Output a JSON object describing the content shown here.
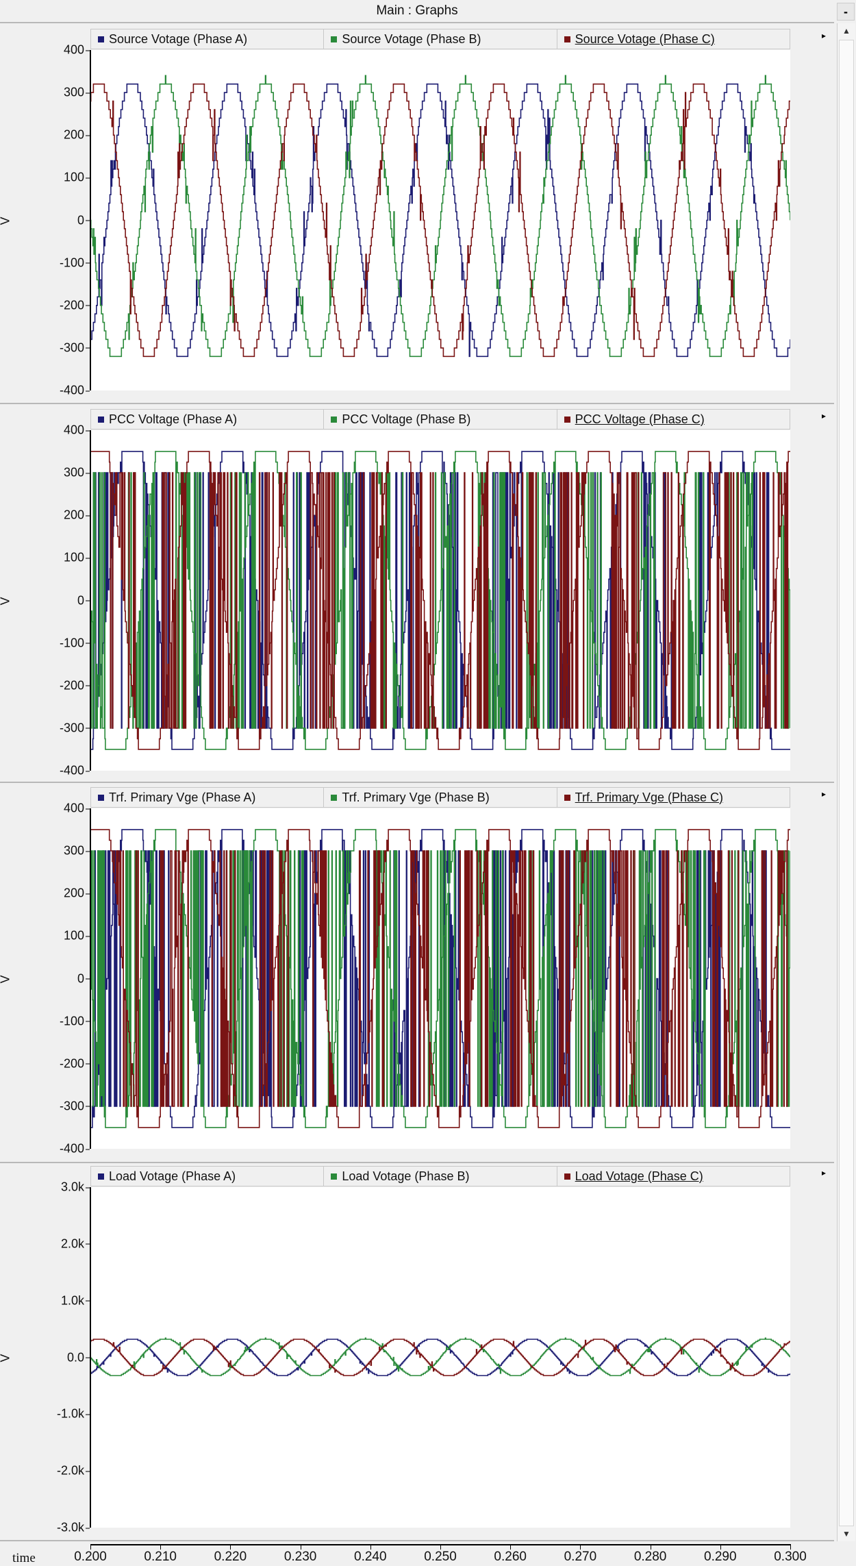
{
  "window": {
    "title": "Main : Graphs",
    "minimize_label": "-"
  },
  "colors": {
    "phase_a": "#1c1c72",
    "phase_b": "#2a8a3a",
    "phase_c": "#7a1414"
  },
  "chart_data": [
    {
      "type": "line",
      "legend": [
        "Source Voltage (Phase A)",
        "Source Voltage (Phase B)",
        "Source Voltage (Phase C)"
      ],
      "ylabel": "V",
      "xlabel": "time",
      "ylim": [
        -400,
        400
      ],
      "yticks": [
        "400",
        "300",
        "200",
        "100",
        "0",
        "-100",
        "-200",
        "-300",
        "-400"
      ],
      "ytick_values": [
        400,
        300,
        200,
        100,
        0,
        -100,
        -200,
        -300,
        -400
      ],
      "series": [
        {
          "name": "Source Voltage (Phase A)",
          "amplitude": 330,
          "frequency_hz": 70,
          "phase_deg": -60
        },
        {
          "name": "Source Voltage (Phase B)",
          "amplitude": 330,
          "frequency_hz": 70,
          "phase_deg": -180
        },
        {
          "name": "Source Voltage (Phase C)",
          "amplitude": 330,
          "frequency_hz": 70,
          "phase_deg": 60
        }
      ],
      "style": "stepped"
    },
    {
      "type": "line",
      "legend": [
        "PCC Voltage (Phase A)",
        "PCC Voltage (Phase B)",
        "PCC Voltage (Phase C)"
      ],
      "ylabel": "V",
      "xlabel": "time",
      "ylim": [
        -400,
        400
      ],
      "yticks": [
        "400",
        "300",
        "200",
        "100",
        "0",
        "-100",
        "-200",
        "-300",
        "-400"
      ],
      "ytick_values": [
        400,
        300,
        200,
        100,
        0,
        -100,
        -200,
        -300,
        -400
      ],
      "series": [
        {
          "name": "PCC Voltage (Phase A)",
          "amplitude": 340,
          "frequency_hz": 70,
          "phase_deg": -60
        },
        {
          "name": "PCC Voltage (Phase B)",
          "amplitude": 340,
          "frequency_hz": 70,
          "phase_deg": -180
        },
        {
          "name": "PCC Voltage (Phase C)",
          "amplitude": 340,
          "frequency_hz": 70,
          "phase_deg": 60
        }
      ],
      "style": "switching"
    },
    {
      "type": "line",
      "legend": [
        "Trf. Primary Vge (Phase A)",
        "Trf. Primary Vge (Phase B)",
        "Trf. Primary Vge (Phase C)"
      ],
      "ylabel": "V",
      "xlabel": "time",
      "ylim": [
        -400,
        400
      ],
      "yticks": [
        "400",
        "300",
        "200",
        "100",
        "0",
        "-100",
        "-200",
        "-300",
        "-400"
      ],
      "ytick_values": [
        400,
        300,
        200,
        100,
        0,
        -100,
        -200,
        -300,
        -400
      ],
      "series": [
        {
          "name": "Trf. Primary Vge (Phase A)",
          "amplitude": 340,
          "frequency_hz": 70,
          "phase_deg": -60
        },
        {
          "name": "Trf. Primary Vge (Phase B)",
          "amplitude": 340,
          "frequency_hz": 70,
          "phase_deg": -180
        },
        {
          "name": "Trf. Primary Vge (Phase C)",
          "amplitude": 340,
          "frequency_hz": 70,
          "phase_deg": 60
        }
      ],
      "style": "switching"
    },
    {
      "type": "line",
      "legend": [
        "Load Votage (Phase A)",
        "Load Votage (Phase B)",
        "Load Votage (Phase C)"
      ],
      "ylabel": "V",
      "xlabel": "time",
      "ylim": [
        -3000,
        3000
      ],
      "yticks": [
        "3.0k",
        "2.0k",
        "1.0k",
        "0.0",
        "-1.0k",
        "-2.0k",
        "-3.0k"
      ],
      "ytick_values": [
        3000,
        2000,
        1000,
        0,
        -1000,
        -2000,
        -3000
      ],
      "series": [
        {
          "name": "Load Votage (Phase A)",
          "amplitude": 330,
          "frequency_hz": 70,
          "phase_deg": -60
        },
        {
          "name": "Load Votage (Phase B)",
          "amplitude": 330,
          "frequency_hz": 70,
          "phase_deg": -180
        },
        {
          "name": "Load Votage (Phase C)",
          "amplitude": 330,
          "frequency_hz": 70,
          "phase_deg": 60
        }
      ],
      "style": "stepped"
    }
  ],
  "legend_labels": [
    [
      "Source Votage (Phase A)",
      "Source Votage (Phase B)",
      "Source Votage (Phase C)"
    ],
    [
      "PCC Voltage (Phase A)",
      "PCC Voltage (Phase B)",
      "PCC Voltage (Phase C)"
    ],
    [
      "Trf. Primary Vge (Phase A)",
      "Trf. Primary Vge (Phase B)",
      "Trf. Primary Vge (Phase C)"
    ],
    [
      "Load Votage (Phase A)",
      "Load Votage (Phase B)",
      "Load Votage (Phase C)"
    ]
  ],
  "xaxis": {
    "label": "time",
    "xlim": [
      0.2,
      0.3
    ],
    "ticks": [
      "0.200",
      "0.210",
      "0.220",
      "0.230",
      "0.240",
      "0.250",
      "0.260",
      "0.270",
      "0.280",
      "0.290",
      "0.300"
    ]
  }
}
